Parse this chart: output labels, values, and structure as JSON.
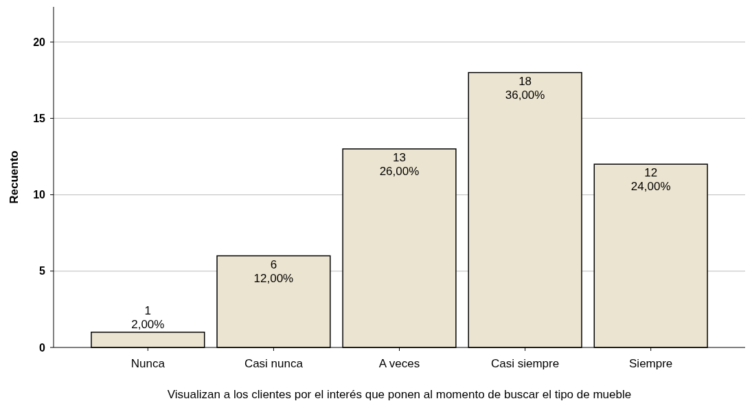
{
  "chart_data": {
    "type": "bar",
    "xlabel": "Visualizan a los clientes por el interés que ponen al momento de buscar el tipo de mueble",
    "ylabel": "Recuento",
    "categories": [
      "Nunca",
      "Casi nunca",
      "A veces",
      "Casi siempre",
      "Siempre"
    ],
    "values": [
      1,
      6,
      13,
      18,
      12
    ],
    "value_labels": [
      "1\n2,00%",
      "6\n12,00%",
      "13\n26,00%",
      "18\n36,00%",
      "12\n24,00%"
    ],
    "color": "#ebe4d0",
    "ylim": [
      0,
      22.3
    ],
    "yticks": [
      0,
      5,
      10,
      15,
      20
    ],
    "grid": "y"
  }
}
